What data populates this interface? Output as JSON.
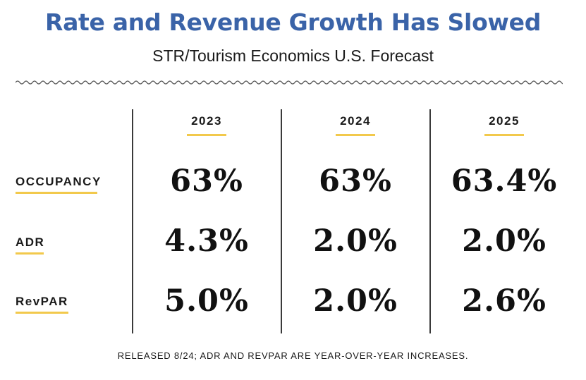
{
  "header": {
    "title": "Rate and Revenue Growth Has Slowed",
    "subtitle": "STR/Tourism Economics U.S. Forecast"
  },
  "chart_data": {
    "type": "table",
    "title": "Rate and Revenue Growth Has Slowed",
    "subtitle": "STR/Tourism Economics U.S. Forecast",
    "columns": [
      "2023",
      "2024",
      "2025"
    ],
    "rows": [
      {
        "label": "OCCUPANCY",
        "values": [
          "63%",
          "63%",
          "63.4%"
        ]
      },
      {
        "label": "ADR",
        "values": [
          "4.3%",
          "2.0%",
          "2.0%"
        ]
      },
      {
        "label": "RevPAR",
        "values": [
          "5.0%",
          "2.0%",
          "2.6%"
        ]
      }
    ]
  },
  "footnote": "RELEASED 8/24; ADR AND REVPAR ARE YEAR-OVER-YEAR INCREASES.",
  "colors": {
    "title": "#3a63a8",
    "accent_underline": "#f2c94c",
    "text": "#1a1a1a"
  }
}
